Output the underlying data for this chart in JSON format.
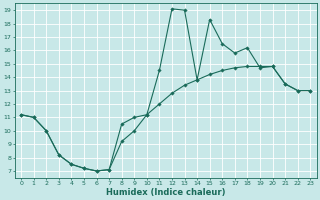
{
  "xlabel": "Humidex (Indice chaleur)",
  "bg_color": "#c8e8e8",
  "grid_color": "#ffffff",
  "line_color": "#1a6b5a",
  "xlim": [
    -0.5,
    23.5
  ],
  "ylim": [
    6.5,
    19.5
  ],
  "xticks": [
    0,
    1,
    2,
    3,
    4,
    5,
    6,
    7,
    8,
    9,
    10,
    11,
    12,
    13,
    14,
    15,
    16,
    17,
    18,
    19,
    20,
    21,
    22,
    23
  ],
  "yticks": [
    7,
    8,
    9,
    10,
    11,
    12,
    13,
    14,
    15,
    16,
    17,
    18,
    19
  ],
  "line1_x": [
    0,
    1,
    2,
    3,
    4,
    5,
    6,
    7,
    8,
    9,
    10,
    11,
    12,
    13,
    14,
    15,
    16,
    17,
    18,
    19,
    20,
    21,
    22,
    23
  ],
  "line1_y": [
    11.2,
    11.0,
    10.0,
    8.2,
    7.5,
    7.2,
    7.0,
    7.1,
    10.5,
    11.0,
    11.2,
    14.5,
    19.1,
    19.0,
    13.8,
    18.3,
    16.5,
    15.8,
    16.2,
    14.7,
    14.8,
    13.5,
    13.0,
    13.0
  ],
  "line2_x": [
    0,
    1,
    2,
    3,
    4,
    5,
    6,
    7,
    8,
    9,
    10,
    11,
    12,
    13,
    14,
    15,
    16,
    17,
    18,
    19,
    20,
    21,
    22,
    23
  ],
  "line2_y": [
    11.2,
    11.0,
    10.0,
    8.2,
    7.5,
    7.2,
    7.0,
    7.1,
    9.2,
    10.0,
    11.2,
    12.0,
    12.8,
    13.4,
    13.8,
    14.2,
    14.5,
    14.7,
    14.8,
    14.8,
    14.8,
    13.5,
    13.0,
    13.0
  ],
  "xlabel_fontsize": 6.0,
  "tick_fontsize": 4.5,
  "linewidth": 0.8,
  "markersize": 1.8
}
